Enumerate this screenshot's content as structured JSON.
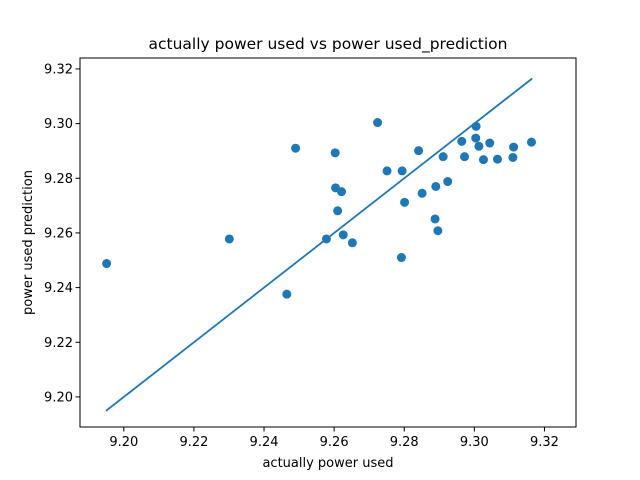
{
  "chart_data": {
    "type": "scatter",
    "title": "actually power used vs power used_prediction",
    "xlabel": "actually power used",
    "ylabel": "power used prediction",
    "xlim": [
      9.1875,
      9.329
    ],
    "ylim": [
      9.189,
      9.324
    ],
    "xticks": [
      9.2,
      9.22,
      9.24,
      9.26,
      9.28,
      9.3,
      9.32
    ],
    "yticks": [
      9.2,
      9.22,
      9.24,
      9.26,
      9.28,
      9.3,
      9.32
    ],
    "xtick_labels": [
      "9.20",
      "9.22",
      "9.24",
      "9.26",
      "9.28",
      "9.30",
      "9.32"
    ],
    "ytick_labels": [
      "9.20",
      "9.22",
      "9.24",
      "9.26",
      "9.28",
      "9.30",
      "9.32"
    ],
    "grid": false,
    "color": "#1f77b4",
    "series": [
      {
        "name": "scatter",
        "x": [
          9.1951,
          9.2301,
          9.2465,
          9.249,
          9.2578,
          9.2603,
          9.2604,
          9.261,
          9.2621,
          9.2626,
          9.2652,
          9.2724,
          9.2751,
          9.2792,
          9.2794,
          9.2801,
          9.2841,
          9.2851,
          9.2888,
          9.289,
          9.2896,
          9.2911,
          9.2924,
          9.2964,
          9.2972,
          9.3004,
          9.3005,
          9.3013,
          9.3026,
          9.3044,
          9.3066,
          9.311,
          9.3112,
          9.3163
        ],
        "y": [
          9.2488,
          9.2578,
          9.2376,
          9.291,
          9.2578,
          9.2893,
          9.2765,
          9.2681,
          9.2751,
          9.2593,
          9.2564,
          9.3004,
          9.2827,
          9.251,
          9.2827,
          9.2712,
          9.2901,
          9.2745,
          9.2651,
          9.277,
          9.2608,
          9.2879,
          9.2788,
          9.2935,
          9.2879,
          9.2947,
          9.299,
          9.2917,
          9.2868,
          9.2929,
          9.287,
          9.2876,
          9.2914,
          9.2932
        ]
      },
      {
        "name": "fit line",
        "x": [
          9.1951,
          9.3163
        ],
        "y": [
          9.1951,
          9.3163
        ]
      }
    ]
  }
}
